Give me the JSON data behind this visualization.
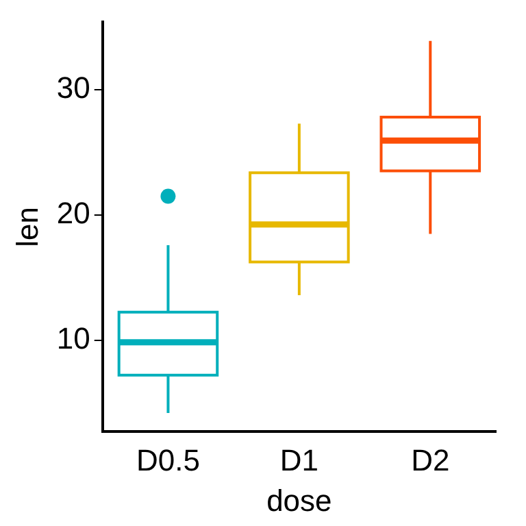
{
  "chart_data": {
    "type": "box",
    "xlabel": "dose",
    "ylabel": "len",
    "categories": [
      "D0.5",
      "D1",
      "D2"
    ],
    "colors": [
      "#00afbb",
      "#e7b800",
      "#fc4e07"
    ],
    "boxes": [
      {
        "low": 4.2,
        "q1": 7.225,
        "median": 9.85,
        "q3": 12.25,
        "high": 17.6,
        "outliers": [
          21.5
        ]
      },
      {
        "low": 13.6,
        "q1": 16.25,
        "median": 19.25,
        "q3": 23.375,
        "high": 27.3
      },
      {
        "low": 18.5,
        "q1": 23.525,
        "median": 25.95,
        "q3": 27.825,
        "high": 33.9
      }
    ],
    "ylim": [
      2.7,
      35.4
    ],
    "yticks": [
      10,
      20,
      30
    ],
    "grid": false,
    "legend": false,
    "marker": "circle"
  }
}
